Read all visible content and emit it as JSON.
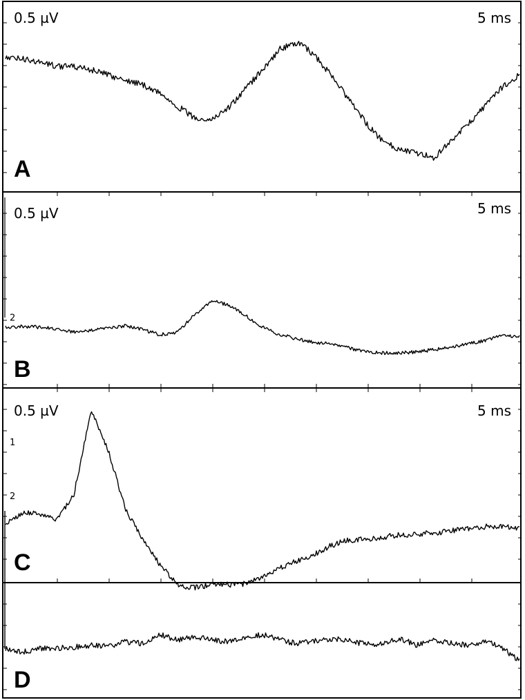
{
  "chart_data": [
    {
      "type": "line",
      "panel": "A",
      "amplitude_label": "0.5 µV",
      "time_label": "5 ms",
      "markers": [],
      "series": [
        {
          "x": [
            0,
            1,
            2,
            3,
            4,
            5,
            6,
            7,
            8,
            9,
            10,
            11,
            12,
            13,
            14,
            15,
            16,
            17,
            18,
            19,
            20,
            21,
            22,
            23,
            24,
            25,
            26,
            27,
            28,
            29,
            30
          ],
          "values": [
            0.45,
            0.44,
            0.41,
            0.38,
            0.37,
            0.35,
            0.3,
            0.26,
            0.22,
            0.15,
            0.04,
            -0.06,
            -0.08,
            0.02,
            0.18,
            0.35,
            0.52,
            0.58,
            0.48,
            0.3,
            0.1,
            -0.1,
            -0.26,
            -0.33,
            -0.36,
            -0.4,
            -0.26,
            -0.12,
            0.04,
            0.2,
            0.3
          ]
        }
      ]
    },
    {
      "type": "line",
      "panel": "B",
      "amplitude_label": "0.5 µV",
      "time_label": "5 ms",
      "markers": [
        {
          "label": "2",
          "value": 0.12
        }
      ],
      "series": [
        {
          "x": [
            0,
            1,
            2,
            3,
            4,
            5,
            6,
            7,
            8,
            9,
            10,
            11,
            12,
            13,
            14,
            15,
            16,
            17,
            18,
            19,
            20,
            21,
            22,
            23,
            24,
            25,
            26,
            27,
            28,
            29,
            30
          ],
          "values": [
            0.0,
            0.01,
            0.0,
            -0.02,
            -0.06,
            -0.04,
            -0.01,
            0.02,
            -0.03,
            -0.09,
            -0.06,
            0.14,
            0.32,
            0.27,
            0.14,
            0.0,
            -0.09,
            -0.14,
            -0.18,
            -0.2,
            -0.25,
            -0.29,
            -0.31,
            -0.31,
            -0.3,
            -0.27,
            -0.24,
            -0.2,
            -0.16,
            -0.1,
            -0.11
          ]
        }
      ]
    },
    {
      "type": "line",
      "panel": "C",
      "amplitude_label": "0.5 µV",
      "time_label": "5 ms",
      "markers": [
        {
          "label": "1",
          "value": 1.1
        },
        {
          "label": "2",
          "value": 0.58
        }
      ],
      "series": [
        {
          "x": [
            0,
            1,
            2,
            3,
            4,
            5,
            6,
            7,
            8,
            9,
            10,
            11,
            12,
            13,
            14,
            15,
            16,
            17,
            18,
            19,
            20,
            21,
            22,
            23,
            24,
            25,
            26,
            27,
            28,
            29,
            30
          ],
          "values": [
            0.3,
            0.42,
            0.4,
            0.35,
            0.6,
            1.4,
            1.02,
            0.45,
            0.15,
            -0.08,
            -0.28,
            -0.31,
            -0.28,
            -0.28,
            -0.27,
            -0.2,
            -0.12,
            -0.05,
            0.01,
            0.1,
            0.15,
            0.16,
            0.18,
            0.2,
            0.21,
            0.22,
            0.24,
            0.26,
            0.28,
            0.28,
            0.26
          ]
        }
      ]
    },
    {
      "type": "line",
      "panel": "D",
      "amplitude_label": "",
      "time_label": "",
      "markers": [],
      "series": [
        {
          "x": [
            0,
            1,
            2,
            3,
            4,
            5,
            6,
            7,
            8,
            9,
            10,
            11,
            12,
            13,
            14,
            15,
            16,
            17,
            18,
            19,
            20,
            21,
            22,
            23,
            24,
            25,
            26,
            27,
            28,
            29,
            30
          ],
          "values": [
            0.0,
            -0.03,
            0.0,
            0.01,
            0.02,
            0.04,
            0.03,
            0.08,
            0.06,
            0.16,
            0.1,
            0.14,
            0.1,
            0.08,
            0.13,
            0.16,
            0.1,
            0.06,
            0.09,
            0.11,
            0.1,
            0.05,
            0.05,
            0.12,
            0.04,
            0.1,
            0.07,
            0.04,
            0.09,
            0.01,
            -0.14
          ]
        }
      ]
    }
  ]
}
